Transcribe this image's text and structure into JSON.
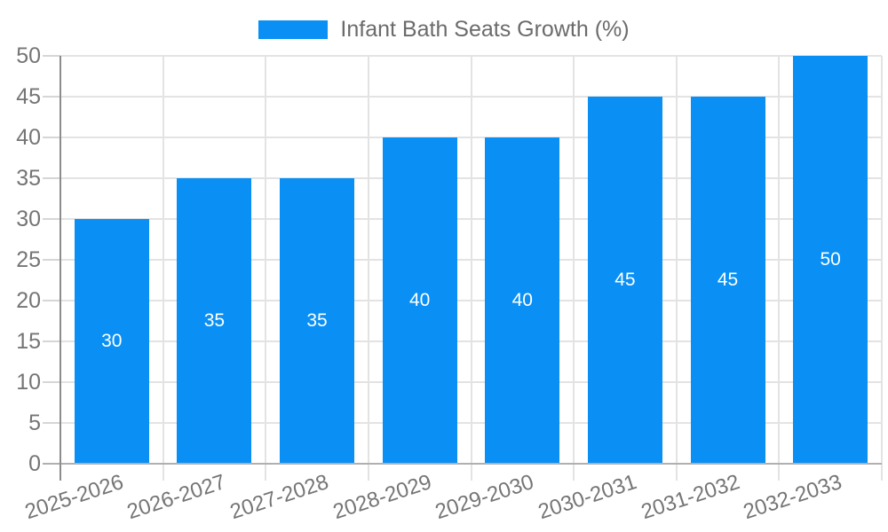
{
  "legend": {
    "label": "Infant Bath Seats Growth (%)"
  },
  "chart_data": {
    "type": "bar",
    "title": "Infant Bath Seats Growth (%)",
    "categories": [
      "2025-2026",
      "2026-2027",
      "2027-2028",
      "2028-2029",
      "2029-2030",
      "2030-2031",
      "2031-2032",
      "2032-2033"
    ],
    "values": [
      30,
      35,
      35,
      40,
      40,
      45,
      45,
      50
    ],
    "xlabel": "",
    "ylabel": "",
    "ylim": [
      0,
      50
    ],
    "ytick_step": 5,
    "grid": true,
    "legend_position": "top",
    "bar_color": "#0a90f5",
    "value_label_color": "#ffffff",
    "axis_text_color": "#757575",
    "gridline_color": "#e3e3e3"
  }
}
